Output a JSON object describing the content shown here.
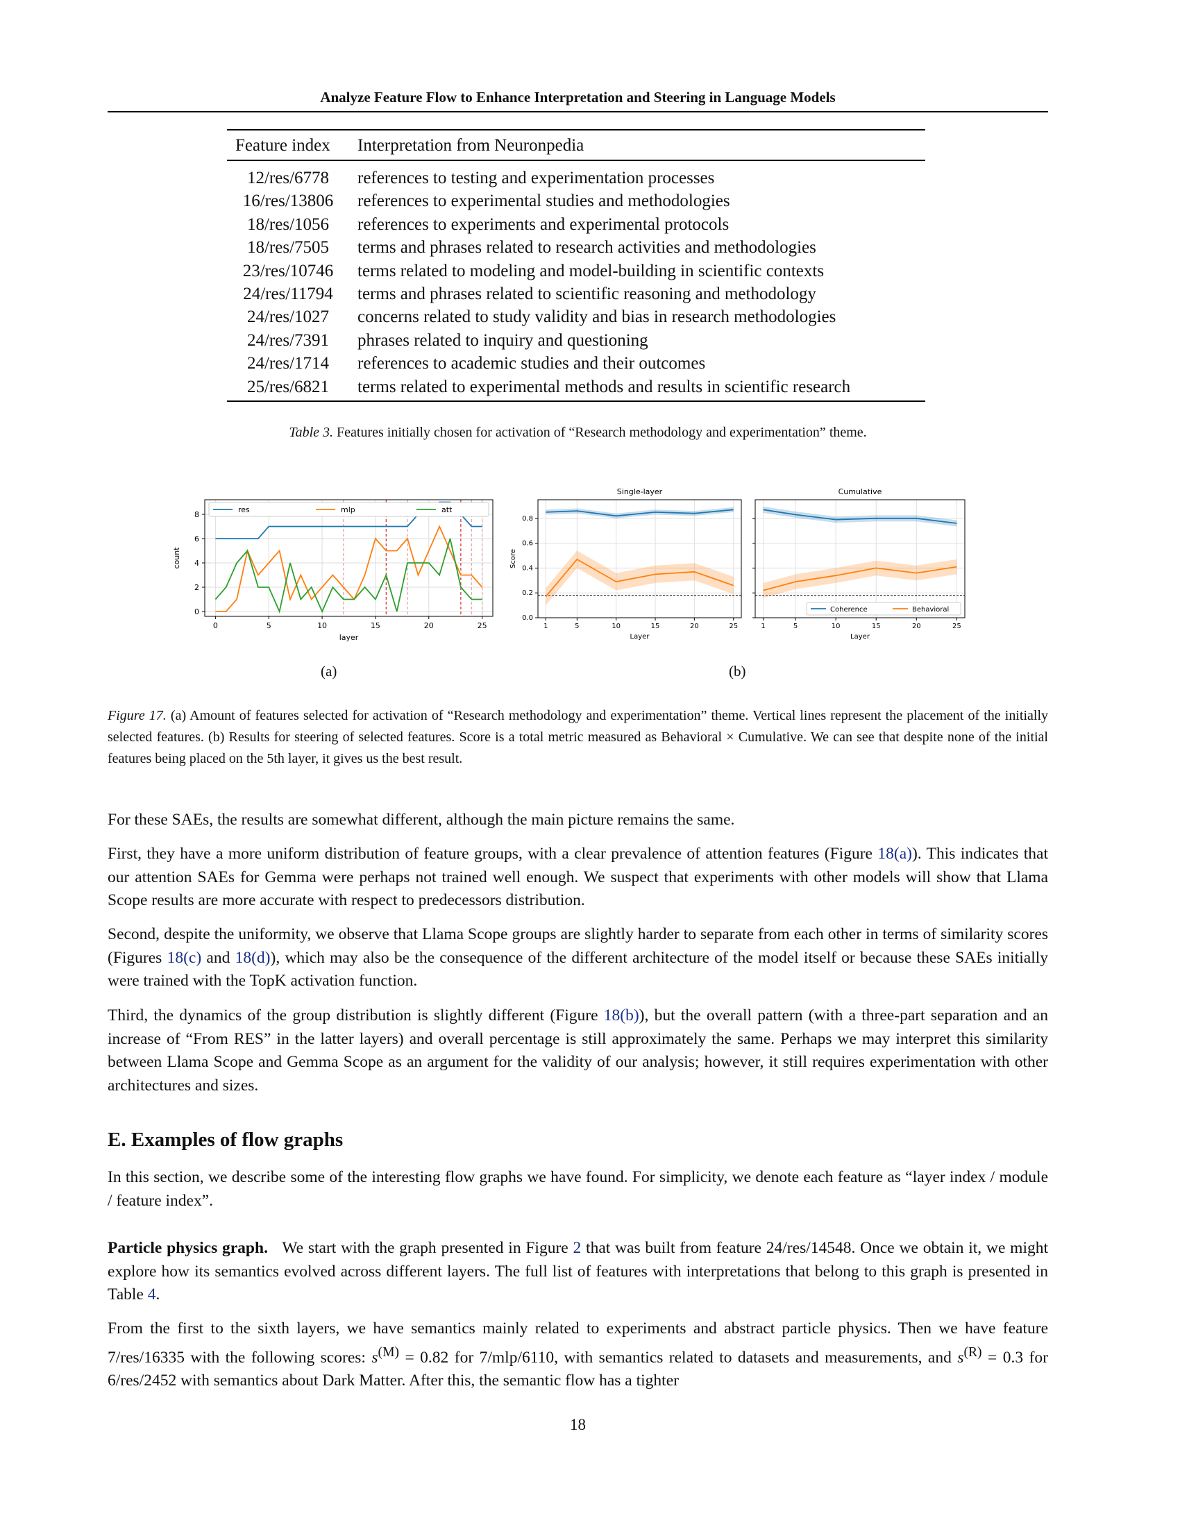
{
  "header": {
    "title": "Analyze Feature Flow to Enhance Interpretation and Steering in Language Models"
  },
  "table3": {
    "columns": [
      "Feature index",
      "Interpretation from Neuronpedia"
    ],
    "rows": [
      [
        "12/res/6778",
        "references to testing and experimentation processes"
      ],
      [
        "16/res/13806",
        "references to experimental studies and methodologies"
      ],
      [
        "18/res/1056",
        "references to experiments and experimental protocols"
      ],
      [
        "18/res/7505",
        "terms and phrases related to research activities and methodologies"
      ],
      [
        "23/res/10746",
        "terms related to modeling and model-building in scientific contexts"
      ],
      [
        "24/res/11794",
        "terms and phrases related to scientific reasoning and methodology"
      ],
      [
        "24/res/1027",
        "concerns related to study validity and bias in research methodologies"
      ],
      [
        "24/res/7391",
        "phrases related to inquiry and questioning"
      ],
      [
        "24/res/1714",
        "references to academic studies and their outcomes"
      ],
      [
        "25/res/6821",
        "terms related to experimental methods and results in scientific research"
      ]
    ],
    "caption_label": "Table 3.",
    "caption_text": "Features initially chosen for activation of “Research methodology and experimentation” theme."
  },
  "figure17": {
    "subcaption_a": "(a)",
    "subcaption_b": "(b)",
    "caption_label": "Figure 17.",
    "caption_text": "(a) Amount of features selected for activation of “Research methodology and experimentation” theme. Vertical lines represent the placement of the initially selected features. (b) Results for steering of selected features. Score is a total metric measured as Behavioral × Cumulative. We can see that despite none of the initial features being placed on the 5th layer, it gives us the best result."
  },
  "chart_data": [
    {
      "type": "line",
      "title": "",
      "xlabel": "layer",
      "ylabel": "count",
      "xlim": [
        -1,
        26
      ],
      "ylim": [
        -0.4,
        9.2
      ],
      "xticks": [
        0,
        5,
        10,
        15,
        20,
        25
      ],
      "yticks": [
        0,
        2,
        4,
        6,
        8
      ],
      "grid": true,
      "legend": "top",
      "vlines_black": [
        16,
        23
      ],
      "vlines_gray": [
        12,
        18,
        24,
        25
      ],
      "x": [
        0,
        1,
        2,
        3,
        4,
        5,
        6,
        7,
        8,
        9,
        10,
        11,
        12,
        13,
        14,
        15,
        16,
        17,
        18,
        19,
        20,
        21,
        22,
        23,
        24,
        25
      ],
      "series": [
        {
          "name": "res",
          "color": "#1f77b4",
          "values": [
            6,
            6,
            6,
            6,
            6,
            7,
            7,
            7,
            7,
            7,
            7,
            7,
            7,
            7,
            7,
            7,
            7,
            7,
            7,
            8,
            8,
            9,
            9,
            8,
            7,
            7
          ]
        },
        {
          "name": "mlp",
          "color": "#ff7f0e",
          "values": [
            0,
            0,
            1,
            5,
            3,
            4,
            5,
            1,
            3,
            1,
            2,
            3,
            2,
            1,
            3,
            6,
            5,
            5,
            6,
            3,
            5,
            7,
            5,
            3,
            3,
            2
          ]
        },
        {
          "name": "att",
          "color": "#2ca02c",
          "values": [
            1,
            2,
            4,
            5,
            2,
            2,
            0,
            4,
            1,
            2,
            0,
            2,
            1,
            1,
            2,
            1,
            3,
            0,
            4,
            4,
            4,
            3,
            6,
            2,
            1,
            1
          ]
        }
      ]
    },
    {
      "type": "line",
      "title": "Single-layer",
      "xlabel": "Layer",
      "ylabel": "Score",
      "ylim": [
        0.0,
        0.95
      ],
      "xticks": [
        1,
        5,
        10,
        15,
        20,
        25
      ],
      "yticks": [
        0.0,
        0.2,
        0.4,
        0.6,
        0.8
      ],
      "baseline": 0.18,
      "x": [
        1,
        5,
        10,
        15,
        20,
        25
      ],
      "series": [
        {
          "name": "Coherence",
          "color": "#1f77b4",
          "values": [
            0.85,
            0.86,
            0.82,
            0.85,
            0.84,
            0.87
          ],
          "band": 0.02
        },
        {
          "name": "Behavioral",
          "color": "#ff7f0e",
          "values": [
            0.17,
            0.47,
            0.29,
            0.35,
            0.37,
            0.26
          ],
          "band": 0.07
        }
      ]
    },
    {
      "type": "line",
      "title": "Cumulative",
      "xlabel": "Layer",
      "ylabel": "",
      "ylim": [
        0.0,
        0.95
      ],
      "xticks": [
        1,
        5,
        10,
        15,
        20,
        25
      ],
      "baseline": 0.18,
      "legend": "lower-right",
      "x": [
        1,
        5,
        10,
        15,
        20,
        25
      ],
      "series": [
        {
          "name": "Coherence",
          "color": "#1f77b4",
          "values": [
            0.87,
            0.83,
            0.79,
            0.8,
            0.8,
            0.76
          ],
          "band": 0.025
        },
        {
          "name": "Behavioral",
          "color": "#ff7f0e",
          "values": [
            0.22,
            0.29,
            0.34,
            0.4,
            0.36,
            0.41
          ],
          "band": 0.06
        }
      ]
    }
  ],
  "body": {
    "p1": "For these SAEs, the results are somewhat different, although the main picture remains the same.",
    "p2_a": "First, they have a more uniform distribution of feature groups, with a clear prevalence of attention features (Figure ",
    "p2_ref": "18(a)",
    "p2_b": "). This indicates that our attention SAEs for Gemma were perhaps not trained well enough. We suspect that experiments with other models will show that Llama Scope results are more accurate with respect to predecessors distribution.",
    "p3_a": "Second, despite the uniformity, we observe that Llama Scope groups are slightly harder to separate from each other in terms of similarity scores (Figures ",
    "p3_ref1": "18(c)",
    "p3_mid": " and ",
    "p3_ref2": "18(d)",
    "p3_b": "), which may also be the consequence of the different architecture of the model itself or because these SAEs initially were trained with the TopK activation function.",
    "p4_a": "Third, the dynamics of the group distribution is slightly different (Figure ",
    "p4_ref": "18(b)",
    "p4_b": "), but the overall pattern (with a three-part separation and an increase of “From RES” in the latter layers) and overall percentage is still approximately the same. Perhaps we may interpret this similarity between Llama Scope and Gemma Scope as an argument for the validity of our analysis; however, it still requires experimentation with other architectures and sizes.",
    "section_e": "E. Examples of flow graphs",
    "p5": "In this section, we describe some of the interesting flow graphs we have found. For simplicity, we denote each feature as “layer index / module / feature index”.",
    "p6_head": "Particle physics graph.",
    "p6_a": "We start with the graph presented in Figure ",
    "p6_ref1": "2",
    "p6_b": " that was built from feature 24/res/14548. Once we obtain it, we might explore how its semantics evolved across different layers. The full list of features with interpretations that belong to this graph is presented in Table ",
    "p6_ref2": "4",
    "p6_c": ".",
    "p7_a": "From the first to the sixth layers, we have semantics mainly related to experiments and abstract particle physics. Then we have feature 7/res/16335 with the following scores: ",
    "p7_m1": "s",
    "p7_m1sup": "(M)",
    "p7_m1val": " = 0.82",
    "p7_b": " for 7/mlp/6110, with semantics related to datasets and measurements, and ",
    "p7_m2": "s",
    "p7_m2sup": "(R)",
    "p7_m2val": " = 0.3",
    "p7_c": " for 6/res/2452 with semantics about Dark Matter. After this, the semantic flow has a tighter"
  },
  "page_number": "18"
}
